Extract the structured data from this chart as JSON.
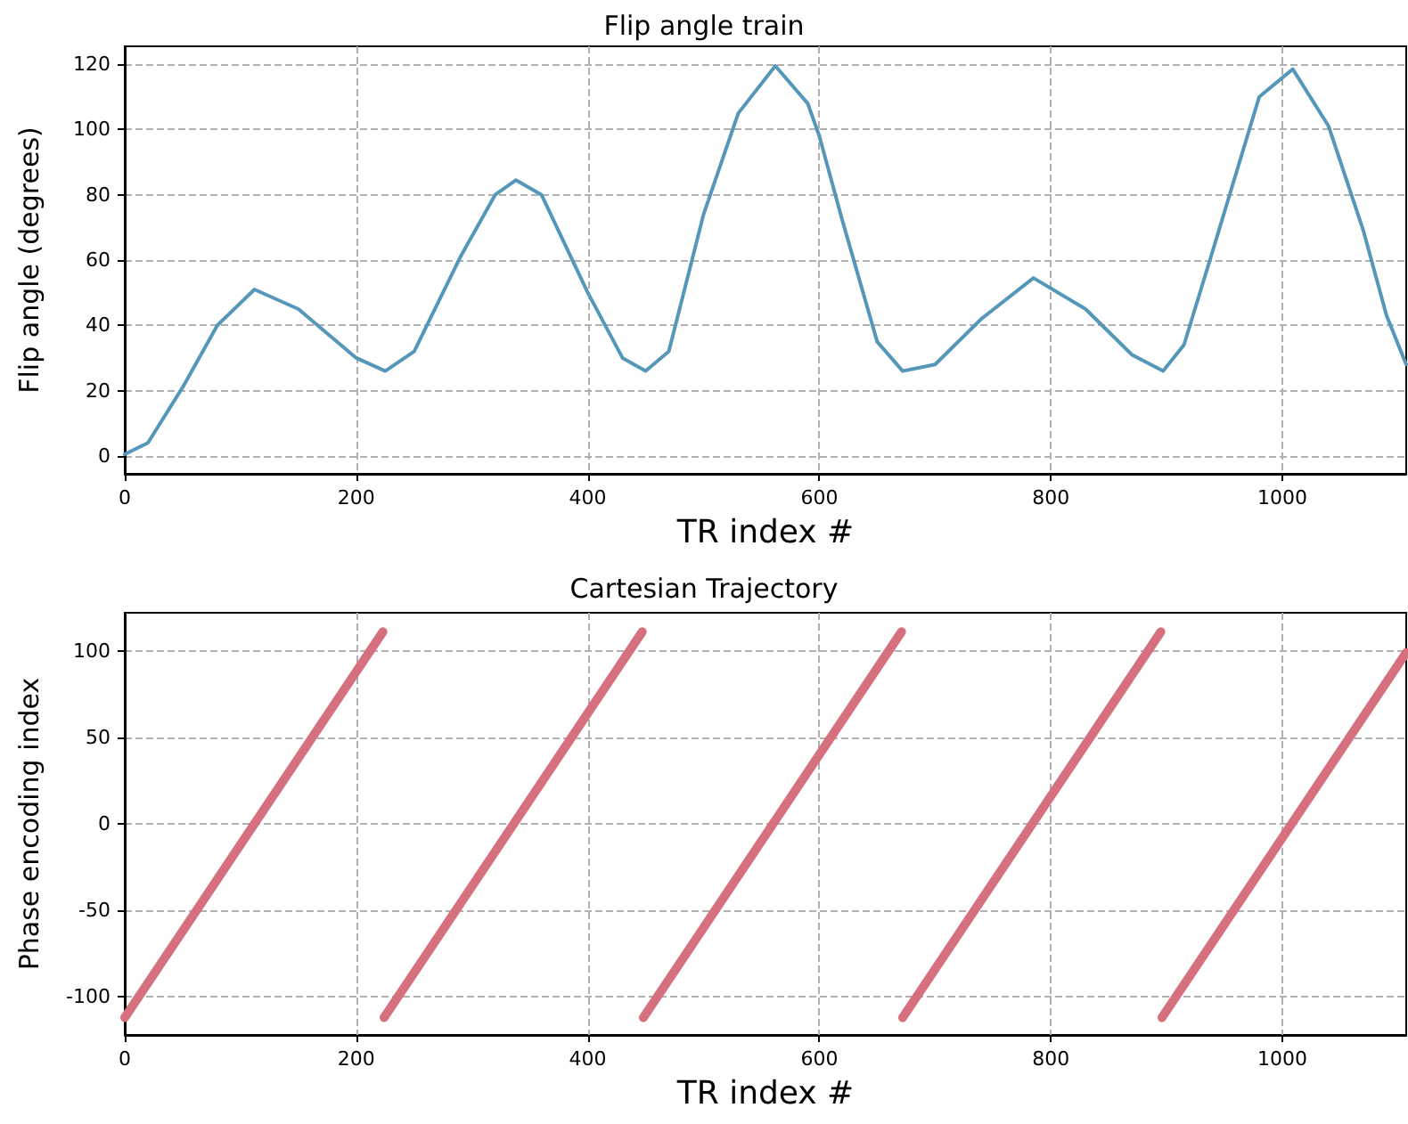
{
  "chart_data": [
    {
      "type": "line",
      "title": "Flip angle train",
      "xlabel": "TR index #",
      "ylabel": "Flip angle (degrees)",
      "xlim": [
        0,
        1107
      ],
      "ylim": [
        -5.5,
        125.5
      ],
      "xticks": [
        0,
        200,
        400,
        600,
        800,
        1000
      ],
      "yticks": [
        0,
        20,
        40,
        60,
        80,
        100,
        120
      ],
      "grid": true,
      "marker": "none",
      "line_style": "solid",
      "x": [
        0,
        20,
        50,
        80,
        112,
        150,
        200,
        225,
        250,
        290,
        320,
        338,
        360,
        400,
        430,
        450,
        470,
        500,
        530,
        562,
        590,
        600,
        620,
        650,
        672,
        700,
        740,
        785,
        830,
        870,
        897,
        915,
        940,
        980,
        1009,
        1040,
        1070,
        1090,
        1107
      ],
      "series": [
        {
          "color": "#5597b9",
          "values": [
            0.5,
            4,
            21,
            40,
            51,
            45,
            30,
            26,
            32,
            61,
            80,
            84.5,
            80,
            50,
            30,
            26,
            32,
            74,
            105,
            119.5,
            108,
            98,
            72,
            35,
            26,
            28,
            42,
            54.5,
            45,
            31,
            26,
            34,
            63,
            110,
            118.5,
            101,
            69,
            43,
            28
          ]
        }
      ]
    },
    {
      "type": "line",
      "title": "Cartesian Trajectory",
      "xlabel": "TR index #",
      "ylabel": "Phase encoding index",
      "xlim": [
        0,
        1107
      ],
      "ylim": [
        -122,
        122
      ],
      "xticks": [
        0,
        200,
        400,
        600,
        800,
        1000
      ],
      "yticks": [
        -100,
        -50,
        0,
        50,
        100
      ],
      "grid": true,
      "marker": "none",
      "line_style": "solid",
      "series": [
        {
          "color": "#d6707f",
          "x": [
            0,
            223
          ],
          "values": [
            -112,
            111
          ]
        },
        {
          "color": "#d6707f",
          "x": [
            224,
            447
          ],
          "values": [
            -112,
            111
          ]
        },
        {
          "color": "#d6707f",
          "x": [
            448,
            671
          ],
          "values": [
            -112,
            111
          ]
        },
        {
          "color": "#d6707f",
          "x": [
            672,
            895
          ],
          "values": [
            -112,
            111
          ]
        },
        {
          "color": "#d6707f",
          "x": [
            896,
            1107
          ],
          "values": [
            -112,
            99
          ]
        }
      ]
    }
  ]
}
